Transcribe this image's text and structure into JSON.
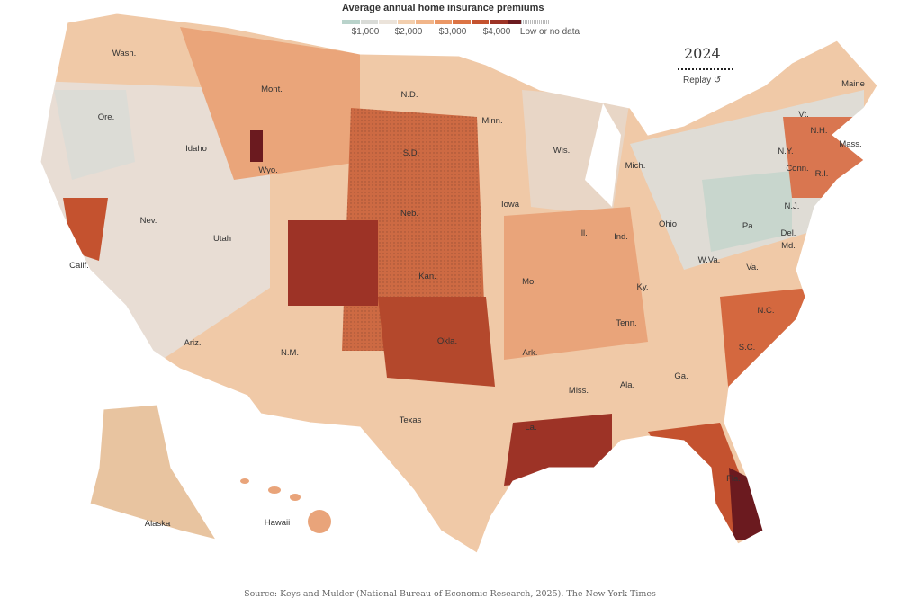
{
  "legend": {
    "title": "Average annual home insurance premiums",
    "colors": [
      "#b9d3cb",
      "#d9dbd7",
      "#ebe3da",
      "#f3cfae",
      "#f1b589",
      "#eb9765",
      "#dc7444",
      "#c4522f",
      "#9d3326",
      "#6b1a1f"
    ],
    "ticks": [
      "$1,000",
      "$2,000",
      "$3,000",
      "$4,000"
    ],
    "no_data_label": "Low or no data"
  },
  "year": "2024",
  "replay_label": "Replay",
  "replay_icon": "replay-arrow-icon",
  "labels": [
    "Wash.",
    "Ore.",
    "Idaho",
    "Mont.",
    "Wyo.",
    "Nev.",
    "Calif.",
    "Utah",
    "Ariz.",
    "N.M.",
    "N.D.",
    "S.D.",
    "Neb.",
    "Kan.",
    "Okla.",
    "Texas",
    "Minn.",
    "Iowa",
    "Mo.",
    "Ark.",
    "La.",
    "Wis.",
    "Ill.",
    "Mich.",
    "Ind.",
    "Ohio",
    "Ky.",
    "Tenn.",
    "Miss.",
    "Ala.",
    "Ga.",
    "Fla.",
    "S.C.",
    "N.C.",
    "Va.",
    "W.Va.",
    "Pa.",
    "N.Y.",
    "Md.",
    "Del.",
    "N.J.",
    "Conn.",
    "R.I.",
    "Mass.",
    "Vt.",
    "N.H.",
    "Maine",
    "Alaska",
    "Hawaii"
  ],
  "source": "Source: Keys and Mulder (National Bureau of Economic Research, 2025).  The New York Times"
}
